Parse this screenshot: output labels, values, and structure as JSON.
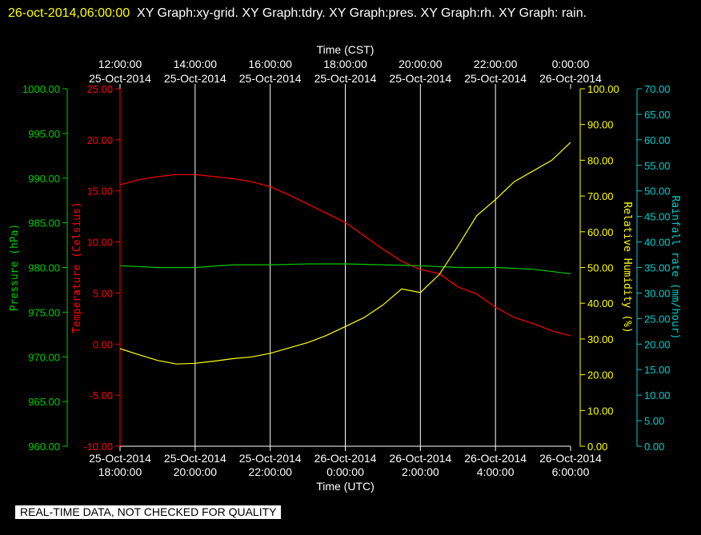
{
  "header": {
    "timestamp": "26-oct-2014,06:00:00",
    "titles": "XY Graph:xy-grid.  XY Graph:tdry.  XY Graph:pres.  XY Graph:rh.  XY Graph: rain."
  },
  "qc_banner": "REAL-TIME DATA, NOT CHECKED FOR QUALITY",
  "colors": {
    "background": "#000000",
    "grid": "#ffffff",
    "temperature": "#ff0000",
    "pressure": "#00cc00",
    "humidity": "#ffff00",
    "rain": "#00cccc",
    "text": "#ffffff"
  },
  "chart_data": {
    "type": "line",
    "grid": true,
    "x_top": {
      "label": "Time (CST)",
      "ticks": [
        {
          "time": "12:00:00",
          "date": "25-Oct-2014"
        },
        {
          "time": "14:00:00",
          "date": "25-Oct-2014"
        },
        {
          "time": "16:00:00",
          "date": "25-Oct-2014"
        },
        {
          "time": "18:00:00",
          "date": "25-Oct-2014"
        },
        {
          "time": "20:00:00",
          "date": "25-Oct-2014"
        },
        {
          "time": "22:00:00",
          "date": "25-Oct-2014"
        },
        {
          "time": "0:00:00",
          "date": "26-Oct-2014"
        }
      ]
    },
    "x_bottom": {
      "label": "Time (UTC)",
      "range": [
        "25-Oct-2014 18:00",
        "26-Oct-2014 06:00"
      ],
      "ticks": [
        {
          "date": "25-Oct-2014",
          "time": "18:00:00"
        },
        {
          "date": "25-Oct-2014",
          "time": "20:00:00"
        },
        {
          "date": "25-Oct-2014",
          "time": "22:00:00"
        },
        {
          "date": "26-Oct-2014",
          "time": "0:00:00"
        },
        {
          "date": "26-Oct-2014",
          "time": "2:00:00"
        },
        {
          "date": "26-Oct-2014",
          "time": "4:00:00"
        },
        {
          "date": "26-Oct-2014",
          "time": "6:00:00"
        }
      ]
    },
    "axes": {
      "pressure": {
        "label": "Pressure (hPa)",
        "range": [
          960,
          1000
        ],
        "ticks": [
          "960.00",
          "965.00",
          "970.00",
          "975.00",
          "980.00",
          "985.00",
          "990.00",
          "995.00",
          "1000.00"
        ]
      },
      "temperature": {
        "label": "Temperature (Celsius)",
        "range": [
          -10,
          25
        ],
        "ticks": [
          "-10.00",
          "-5.00",
          "0.00",
          "5.00",
          "10.00",
          "15.00",
          "20.00",
          "25.00"
        ]
      },
      "humidity": {
        "label": "Relative Humidity (%)",
        "range": [
          0,
          100
        ],
        "ticks": [
          "0.00",
          "10.00",
          "20.00",
          "30.00",
          "40.00",
          "50.00",
          "60.00",
          "70.00",
          "80.00",
          "90.00",
          "100.00"
        ]
      },
      "rain": {
        "label": "Rainfall rate (mm/hour)",
        "range": [
          0,
          70
        ],
        "ticks": [
          "0.00",
          "5.00",
          "10.00",
          "15.00",
          "20.00",
          "25.00",
          "30.00",
          "35.00",
          "40.00",
          "45.00",
          "50.00",
          "55.00",
          "60.00",
          "65.00",
          "70.00"
        ]
      }
    },
    "series": [
      {
        "key": "temperature",
        "axis": "temperature",
        "x_hours": [
          0,
          0.5,
          1,
          1.5,
          2,
          2.5,
          3,
          3.5,
          4,
          4.5,
          5,
          5.5,
          6,
          6.5,
          7,
          7.5,
          8,
          8.5,
          9,
          9.5,
          10,
          10.5,
          11,
          11.5,
          12
        ],
        "values": [
          15.6,
          16.1,
          16.4,
          16.6,
          16.6,
          16.4,
          16.2,
          15.9,
          15.4,
          14.6,
          13.7,
          12.8,
          11.9,
          10.6,
          9.3,
          8.1,
          7.3,
          6.9,
          5.6,
          4.9,
          3.6,
          2.6,
          2.0,
          1.3,
          0.8
        ]
      },
      {
        "key": "pressure",
        "axis": "pressure",
        "x_hours": [
          0,
          1,
          2,
          3,
          4,
          5,
          6,
          7,
          8,
          9,
          10,
          11,
          12
        ],
        "values": [
          980.2,
          980.0,
          980.0,
          980.3,
          980.3,
          980.4,
          980.4,
          980.3,
          980.2,
          980.0,
          980.0,
          979.8,
          979.3
        ]
      },
      {
        "key": "humidity",
        "axis": "humidity",
        "x_hours": [
          0,
          0.5,
          1,
          1.5,
          2,
          2.5,
          3,
          3.5,
          4,
          4.5,
          5,
          5.5,
          6,
          6.5,
          7,
          7.5,
          8,
          8.5,
          9,
          9.5,
          10,
          10.5,
          11,
          11.5,
          12
        ],
        "values": [
          27.3,
          25.6,
          24.0,
          23.0,
          23.2,
          23.8,
          24.5,
          25.0,
          26.0,
          27.5,
          29.0,
          31.0,
          33.5,
          36.0,
          39.5,
          44.0,
          43.0,
          48.0,
          56.0,
          64.5,
          69.0,
          74.0,
          77.0,
          80.0,
          85.0
        ]
      },
      {
        "key": "rain",
        "axis": "rain",
        "x_hours": [],
        "values": []
      }
    ]
  }
}
